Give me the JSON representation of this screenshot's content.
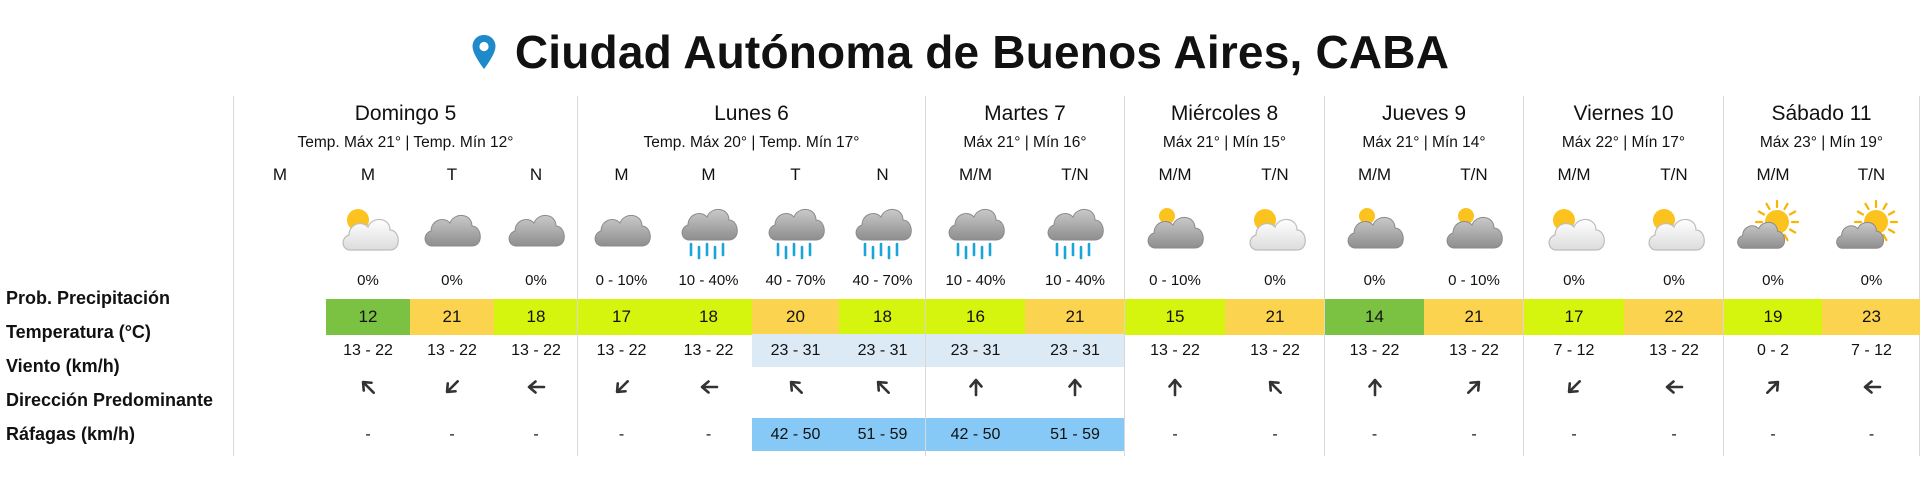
{
  "location": "Ciudad Autónoma de Buenos Aires, CABA",
  "colors": {
    "temp_green": "#7cc242",
    "temp_lime": "#d6f50e",
    "temp_orange": "#fcd34f",
    "wind_light_blue": "#dceaf6",
    "gust_blue": "#86c9f6",
    "pin_blue": "#1f8ac9"
  },
  "row_labels": {
    "precip": "Prob. Precipitación",
    "temp": "Temperatura (°C)",
    "wind": "Viento (km/h)",
    "direction": "Dirección Predominante",
    "gusts": "Ráfagas (km/h)"
  },
  "days": [
    {
      "name": "Domingo 5",
      "temps": "Temp. Máx 21° | Temp. Mín 12°",
      "periods": [
        {
          "label": "M",
          "icon": "",
          "prob": "",
          "temp": "",
          "temp_color": "",
          "wind": "",
          "wind_bg": "",
          "dir_icon": "",
          "dir_angle": null,
          "gust": "",
          "gust_bg": ""
        },
        {
          "label": "M",
          "icon": "partly-cloudy-sun-icon",
          "prob": "0%",
          "temp": "12",
          "temp_color": "#7cc242",
          "wind": "13 - 22",
          "wind_bg": "",
          "dir_icon": "arrow-northwest-icon",
          "dir_angle": -45,
          "gust": "-",
          "gust_bg": ""
        },
        {
          "label": "T",
          "icon": "cloudy-icon",
          "prob": "0%",
          "temp": "21",
          "temp_color": "#fcd34f",
          "wind": "13 - 22",
          "wind_bg": "",
          "dir_icon": "arrow-southwest-icon",
          "dir_angle": -135,
          "gust": "-",
          "gust_bg": ""
        },
        {
          "label": "N",
          "icon": "cloudy-icon",
          "prob": "0%",
          "temp": "18",
          "temp_color": "#d6f50e",
          "wind": "13 - 22",
          "wind_bg": "",
          "dir_icon": "arrow-west-icon",
          "dir_angle": -90,
          "gust": "-",
          "gust_bg": ""
        }
      ]
    },
    {
      "name": "Lunes 6",
      "temps": "Temp. Máx 20° | Temp. Mín 17°",
      "periods": [
        {
          "label": "M",
          "icon": "cloudy-icon",
          "prob": "0 - 10%",
          "temp": "17",
          "temp_color": "#d6f50e",
          "wind": "13 - 22",
          "wind_bg": "",
          "dir_icon": "arrow-southwest-icon",
          "dir_angle": -135,
          "gust": "-",
          "gust_bg": ""
        },
        {
          "label": "M",
          "icon": "rain-icon",
          "prob": "10 - 40%",
          "temp": "18",
          "temp_color": "#d6f50e",
          "wind": "13 - 22",
          "wind_bg": "",
          "dir_icon": "arrow-west-icon",
          "dir_angle": -90,
          "gust": "-",
          "gust_bg": ""
        },
        {
          "label": "T",
          "icon": "rain-icon",
          "prob": "40 - 70%",
          "temp": "20",
          "temp_color": "#fcd34f",
          "wind": "23 - 31",
          "wind_bg": "#dceaf6",
          "dir_icon": "arrow-northwest-icon",
          "dir_angle": -45,
          "gust": "42 - 50",
          "gust_bg": "#86c9f6"
        },
        {
          "label": "N",
          "icon": "rain-icon",
          "prob": "40 - 70%",
          "temp": "18",
          "temp_color": "#d6f50e",
          "wind": "23 - 31",
          "wind_bg": "#dceaf6",
          "dir_icon": "arrow-northwest-icon",
          "dir_angle": -45,
          "gust": "51 - 59",
          "gust_bg": "#86c9f6"
        }
      ]
    },
    {
      "name": "Martes 7",
      "temps": "Máx 21° | Mín 16°",
      "periods": [
        {
          "label": "M/M",
          "icon": "rain-icon",
          "prob": "10 - 40%",
          "temp": "16",
          "temp_color": "#d6f50e",
          "wind": "23 - 31",
          "wind_bg": "#dceaf6",
          "dir_icon": "arrow-north-icon",
          "dir_angle": 0,
          "gust": "42 - 50",
          "gust_bg": "#86c9f6"
        },
        {
          "label": "T/N",
          "icon": "rain-icon",
          "prob": "10 - 40%",
          "temp": "21",
          "temp_color": "#fcd34f",
          "wind": "23 - 31",
          "wind_bg": "#dceaf6",
          "dir_icon": "arrow-north-icon",
          "dir_angle": 0,
          "gust": "51 - 59",
          "gust_bg": "#86c9f6"
        }
      ]
    },
    {
      "name": "Miércoles 8",
      "temps": "Máx 21° | Mín 15°",
      "periods": [
        {
          "label": "M/M",
          "icon": "mostly-cloudy-icon",
          "prob": "0 - 10%",
          "temp": "15",
          "temp_color": "#d6f50e",
          "wind": "13 - 22",
          "wind_bg": "",
          "dir_icon": "arrow-north-icon",
          "dir_angle": 0,
          "gust": "-",
          "gust_bg": ""
        },
        {
          "label": "T/N",
          "icon": "partly-cloudy-sun-icon",
          "prob": "0%",
          "temp": "21",
          "temp_color": "#fcd34f",
          "wind": "13 - 22",
          "wind_bg": "",
          "dir_icon": "arrow-northwest-icon",
          "dir_angle": -45,
          "gust": "-",
          "gust_bg": ""
        }
      ]
    },
    {
      "name": "Jueves 9",
      "temps": "Máx 21° | Mín 14°",
      "periods": [
        {
          "label": "M/M",
          "icon": "mostly-cloudy-icon",
          "prob": "0%",
          "temp": "14",
          "temp_color": "#7cc242",
          "wind": "13 - 22",
          "wind_bg": "",
          "dir_icon": "arrow-north-icon",
          "dir_angle": 0,
          "gust": "-",
          "gust_bg": ""
        },
        {
          "label": "T/N",
          "icon": "mostly-cloudy-icon",
          "prob": "0 - 10%",
          "temp": "21",
          "temp_color": "#fcd34f",
          "wind": "13 - 22",
          "wind_bg": "",
          "dir_icon": "arrow-northeast-icon",
          "dir_angle": 45,
          "gust": "-",
          "gust_bg": ""
        }
      ]
    },
    {
      "name": "Viernes 10",
      "temps": "Máx 22° | Mín 17°",
      "periods": [
        {
          "label": "M/M",
          "icon": "partly-cloudy-sun-icon",
          "prob": "0%",
          "temp": "17",
          "temp_color": "#d6f50e",
          "wind": "7 - 12",
          "wind_bg": "",
          "dir_icon": "arrow-southwest-icon",
          "dir_angle": -135,
          "gust": "-",
          "gust_bg": ""
        },
        {
          "label": "T/N",
          "icon": "partly-cloudy-sun-icon",
          "prob": "0%",
          "temp": "22",
          "temp_color": "#fcd34f",
          "wind": "13 - 22",
          "wind_bg": "",
          "dir_icon": "arrow-west-icon",
          "dir_angle": -90,
          "gust": "-",
          "gust_bg": ""
        }
      ]
    },
    {
      "name": "Sábado 11",
      "temps": "Máx 23° | Mín 19°",
      "periods": [
        {
          "label": "M/M",
          "icon": "sunny-cloudy-icon",
          "prob": "0%",
          "temp": "19",
          "temp_color": "#d6f50e",
          "wind": "0 - 2",
          "wind_bg": "",
          "dir_icon": "arrow-northeast-icon",
          "dir_angle": 45,
          "gust": "-",
          "gust_bg": ""
        },
        {
          "label": "T/N",
          "icon": "sunny-cloudy-icon",
          "prob": "0%",
          "temp": "23",
          "temp_color": "#fcd34f",
          "wind": "7 - 12",
          "wind_bg": "",
          "dir_icon": "arrow-west-icon",
          "dir_angle": -90,
          "gust": "-",
          "gust_bg": ""
        }
      ]
    }
  ]
}
